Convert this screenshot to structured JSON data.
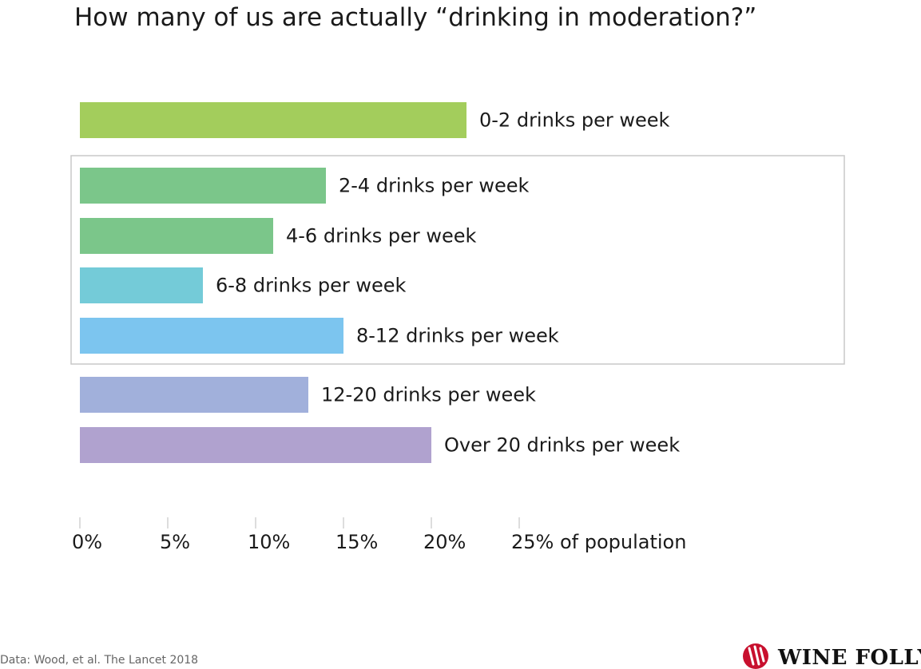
{
  "title": "How many of us are actually “drinking in moderation?”",
  "source": "Data: Wood, et al. The Lancet 2018",
  "brand": {
    "name": "WINE FOLLY",
    "logo_color": "#c8102e"
  },
  "chart_data": {
    "type": "bar",
    "orientation": "horizontal",
    "title": "How many of us are actually “drinking in moderation?”",
    "xlabel": "of population",
    "ylabel": "",
    "xlim": [
      0,
      25
    ],
    "xticks": [
      0,
      5,
      10,
      15,
      20,
      25
    ],
    "xtick_labels": [
      "0%",
      "5%",
      "10%",
      "15%",
      "20%",
      "25% of population"
    ],
    "categories": [
      "0-2 drinks per week",
      "2-4 drinks per week",
      "4-6 drinks per week",
      "6-8 drinks per week",
      "8-12 drinks per week",
      "12-20 drinks per week",
      "Over 20 drinks per week"
    ],
    "values": [
      22,
      14,
      11,
      7,
      15,
      13,
      20
    ],
    "colors": [
      "#a3cd5c",
      "#7bc68a",
      "#7bc68a",
      "#74cbd8",
      "#7cc5ef",
      "#a1b0db",
      "#b0a2cf"
    ],
    "highlight_box": {
      "from_category": "2-4 drinks per week",
      "to_category": "8-12 drinks per week",
      "stroke": "#c8c8c8"
    },
    "grid": false,
    "legend": "none"
  }
}
